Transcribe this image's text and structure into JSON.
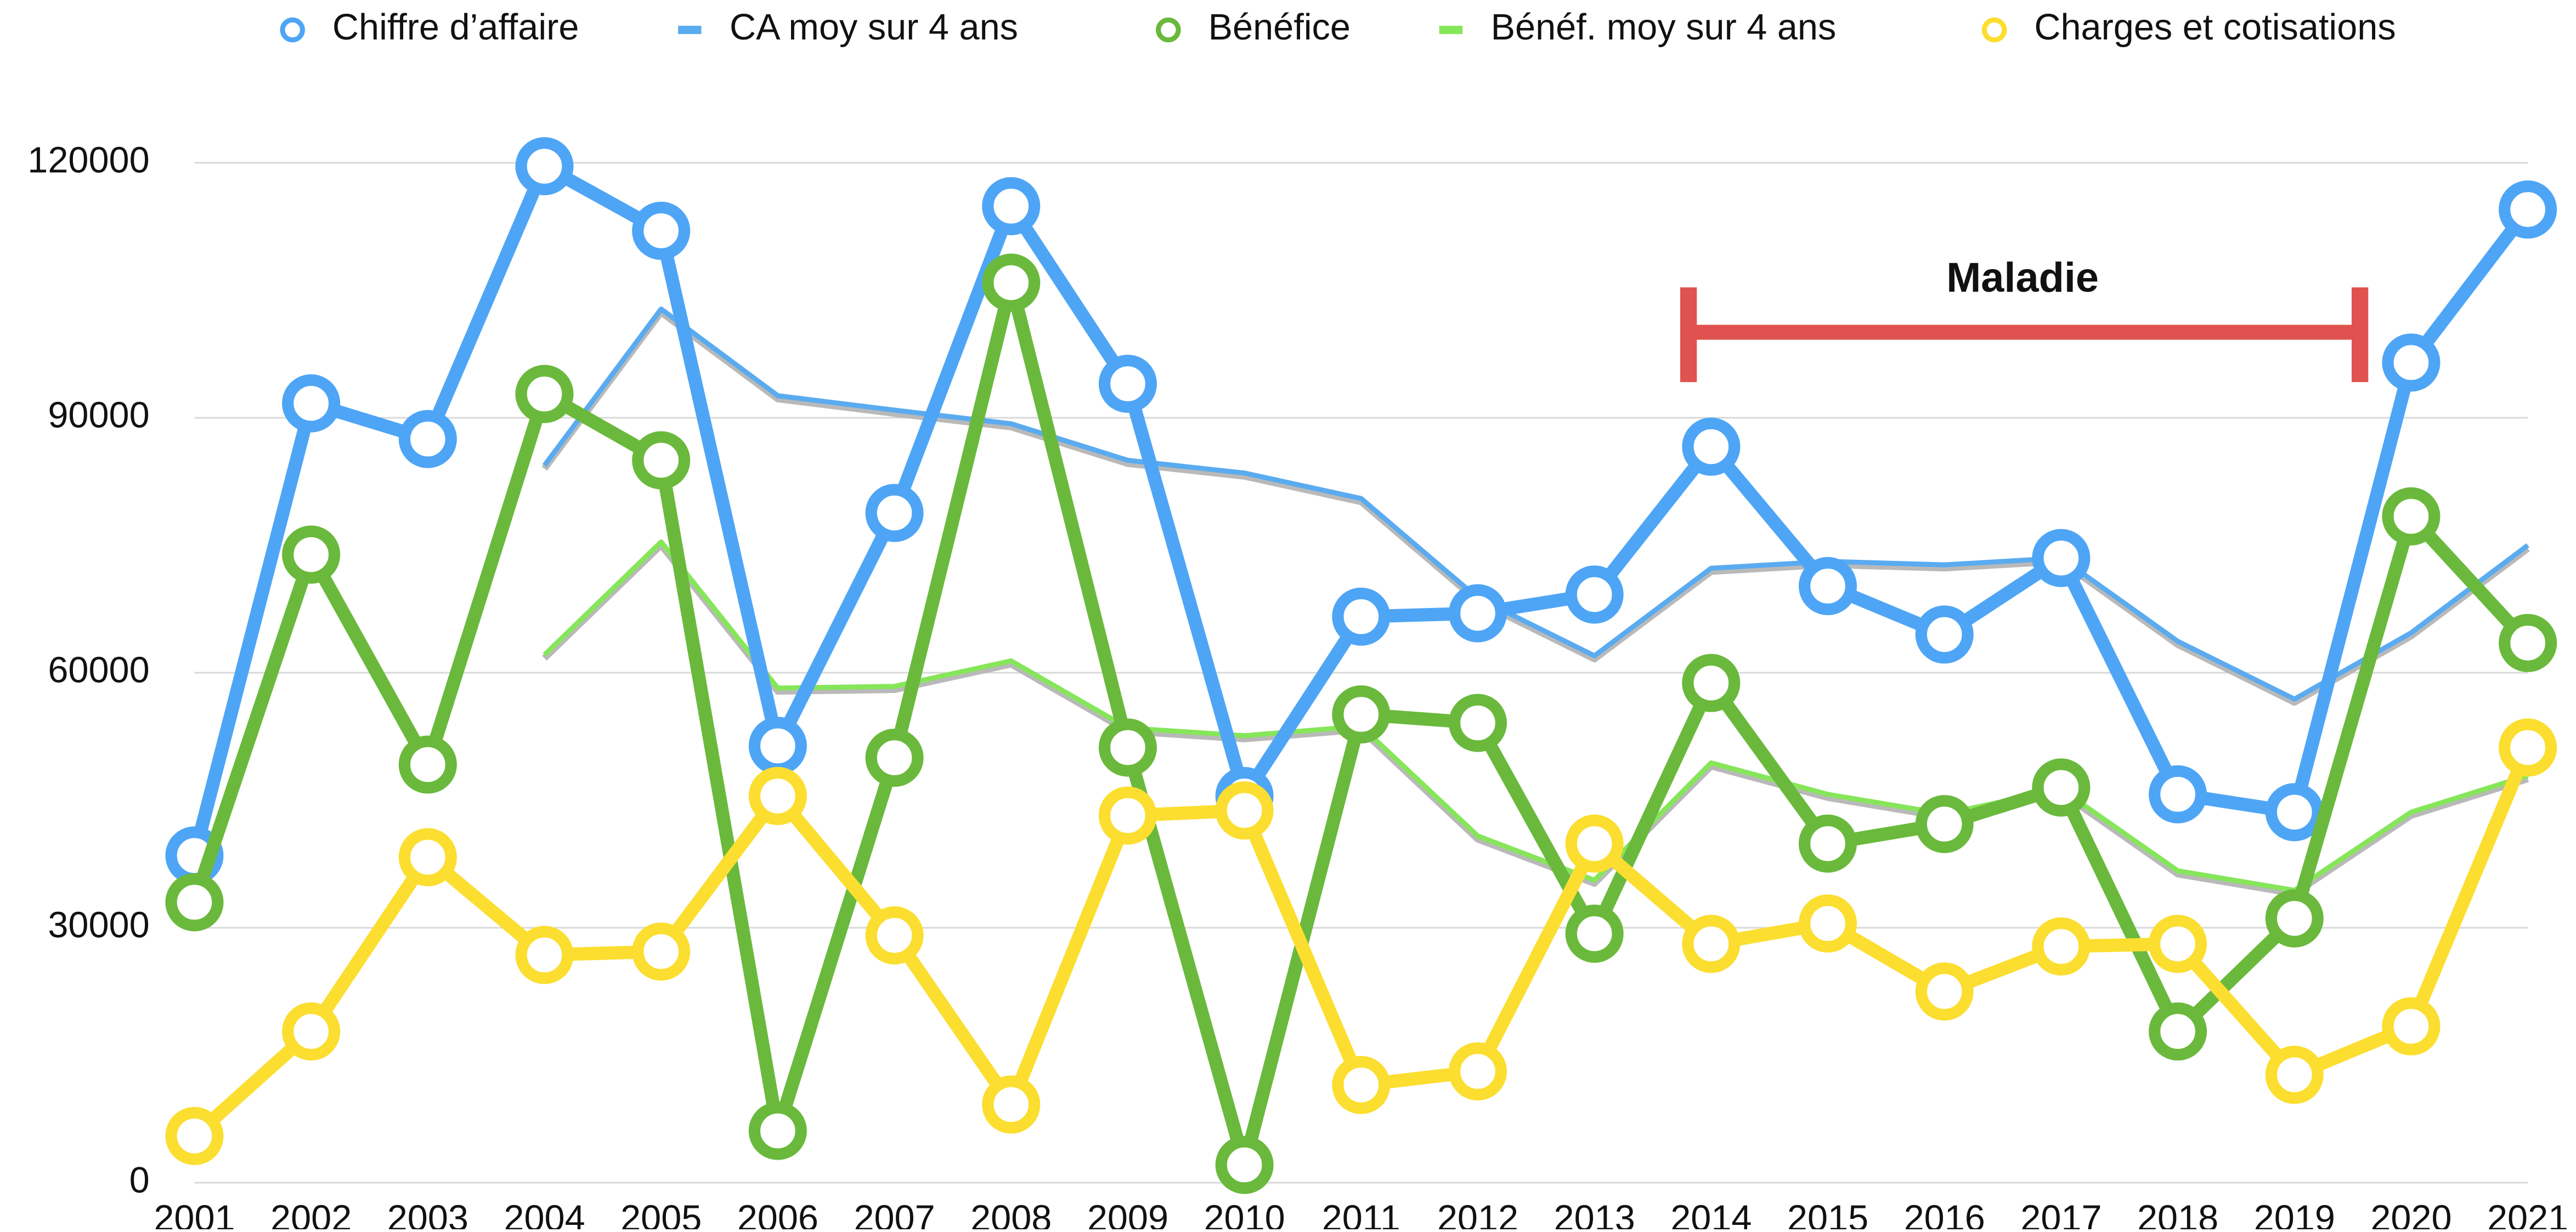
{
  "chart_data": {
    "type": "line",
    "categories": [
      "2001",
      "2002",
      "2003",
      "2004",
      "2005",
      "2006",
      "2007",
      "2008",
      "2009",
      "2010",
      "2011",
      "2012",
      "2013",
      "2014",
      "2015",
      "2016",
      "2017",
      "2018",
      "2019",
      "2020",
      "2021"
    ],
    "series": [
      {
        "name": "Chiffre d’affaire",
        "color": "#4ea5f5",
        "marker": "circle",
        "values": [
          38500,
          91700,
          87500,
          119600,
          112000,
          51400,
          78800,
          114900,
          94000,
          45500,
          66600,
          67000,
          69200,
          86600,
          70200,
          64500,
          73500,
          45700,
          43600,
          96500,
          114500
        ]
      },
      {
        "name": "CA moy sur 4 ans",
        "color": "#5aabf0",
        "marker": "none",
        "values": [
          null,
          null,
          null,
          84400,
          102800,
          92600,
          90900,
          89300,
          85000,
          83500,
          80500,
          68800,
          62000,
          72300,
          73100,
          72700,
          73500,
          63700,
          56900,
          64700,
          75000
        ]
      },
      {
        "name": "Bénéfice",
        "color": "#6ab93c",
        "marker": "circle",
        "values": [
          33000,
          73900,
          49200,
          92800,
          85000,
          6100,
          50000,
          105900,
          51200,
          2100,
          55100,
          54100,
          29300,
          58800,
          39900,
          42200,
          46500,
          17800,
          31100,
          78400,
          63500
        ]
      },
      {
        "name": "Bénéf. moy sur 4 ans",
        "color": "#86e65a",
        "marker": "none",
        "values": [
          null,
          null,
          null,
          62100,
          75400,
          58200,
          58400,
          61400,
          53500,
          52600,
          53700,
          40800,
          35600,
          49400,
          45700,
          43400,
          46300,
          36700,
          34400,
          43600,
          47900
        ]
      },
      {
        "name": "Charges et cotisations",
        "color": "#fbde2f",
        "marker": "circle",
        "values": [
          5500,
          17800,
          38300,
          26800,
          27200,
          45500,
          29100,
          9200,
          43200,
          43800,
          11500,
          13100,
          39900,
          28100,
          30500,
          22500,
          27800,
          28100,
          12700,
          18400,
          51200
        ]
      }
    ],
    "ylim": [
      0,
      120000
    ],
    "yticks": [
      0,
      30000,
      60000,
      90000,
      120000
    ],
    "grid": true,
    "legend": "top",
    "annotation": "Maladie"
  }
}
